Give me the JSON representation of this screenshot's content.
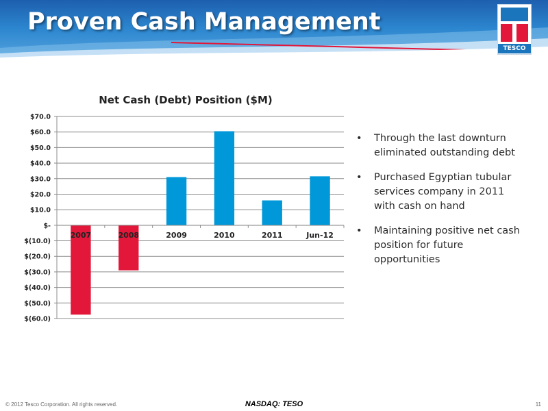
{
  "slide": {
    "title": "Proven Cash Management",
    "logo_text": "TESCO",
    "bullets": [
      "Through the last downturn eliminated outstanding debt",
      "Purchased Egyptian tubular services company in 2011 with cash on hand",
      "Maintaining positive net cash position for future opportunities"
    ],
    "footer_left": "© 2012 Tesco Corporation. All rights reserved.",
    "footer_center": "NASDAQ: TESO",
    "page_number": "11"
  },
  "colors": {
    "positive": "#0098d8",
    "negative": "#e2173a",
    "header_blue": "#2c86cf",
    "gridline": "#8c8c8c"
  },
  "chart_data": {
    "type": "bar",
    "title": "Net Cash (Debt) Position ($M)",
    "categories": [
      "2007",
      "2008",
      "2009",
      "2010",
      "2011",
      "Jun-12"
    ],
    "values": [
      -57.5,
      -29,
      31,
      60.5,
      16,
      31.5
    ],
    "ylim": [
      -60,
      70
    ],
    "yticks": [
      70,
      60,
      50,
      40,
      30,
      20,
      10,
      0,
      -10,
      -20,
      -30,
      -40,
      -50,
      -60
    ],
    "ytick_labels": [
      "$70.0",
      "$60.0",
      "$50.0",
      "$40.0",
      "$30.0",
      "$20.0",
      "$10.0",
      "$-",
      "$(10.0)",
      "$(20.0)",
      "$(30.0)",
      "$(40.0)",
      "$(50.0)",
      "$(60.0)"
    ],
    "grid": true,
    "xlabel": "",
    "ylabel": ""
  }
}
